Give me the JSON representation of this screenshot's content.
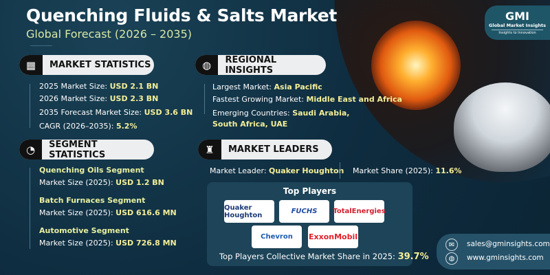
{
  "header": {
    "title": "Quenching Fluids & Salts Market",
    "subtitle": "Global Forecast (2026 – 2035)"
  },
  "logo": {
    "mark": "GMI",
    "name": "Global Market Insights",
    "tagline": "Insights to Innovation"
  },
  "market_statistics": {
    "heading": "MARKET STATISTICS",
    "items": [
      {
        "label": "2025 Market Size: ",
        "value": "USD 2.1 BN"
      },
      {
        "label": "2026 Market Size: ",
        "value": "USD 2.3 BN"
      },
      {
        "label": "2035 Forecast Market Size: ",
        "value": "USD 3.6 BN"
      },
      {
        "label": "CAGR (2026–2035): ",
        "value": "5.2%"
      }
    ]
  },
  "regional_insights": {
    "heading": "REGIONAL INSIGHTS",
    "largest_label": "Largest Market: ",
    "largest_value": "Asia Pacific",
    "fastest_label": "Fastest Growing Market: ",
    "fastest_value": "Middle East and Africa",
    "emerging_label": "Emerging Countries: ",
    "emerging_value1": "Saudi Arabia,",
    "emerging_value2": "South Africa, UAE"
  },
  "segment_statistics": {
    "heading": "SEGMENT STATISTICS",
    "items": [
      {
        "name": "Quenching Oils Segment",
        "label": "Market Size (2025): ",
        "value": "USD 1.2 BN"
      },
      {
        "name": "Batch Furnaces Segment",
        "label": "Market Size (2025): ",
        "value": "USD 616.6 MN"
      },
      {
        "name": "Automotive Segment",
        "label": "Market Size (2025): ",
        "value": "USD 726.8 MN"
      }
    ]
  },
  "market_leaders": {
    "heading": "MARKET LEADERS",
    "leader_label": "Market Leader: ",
    "leader_value": "Quaker Houghton",
    "share_label": "Market Share (2025): ",
    "share_value": "11.6%",
    "top_players_title": "Top Players",
    "players": [
      "Quaker Houghton",
      "FUCHS",
      "TotalEnergies",
      "Chevron",
      "ExxonMobil"
    ],
    "collective_label": "Top Players Collective Market Share in 2025: ",
    "collective_value": "39.7%"
  },
  "contact": {
    "email": "sales@gminsights.com",
    "website": "www.gminsights.com"
  },
  "colors": {
    "background": "#0f2d40",
    "highlight": "#f3ee98",
    "subtitle": "#d8e8a6"
  }
}
